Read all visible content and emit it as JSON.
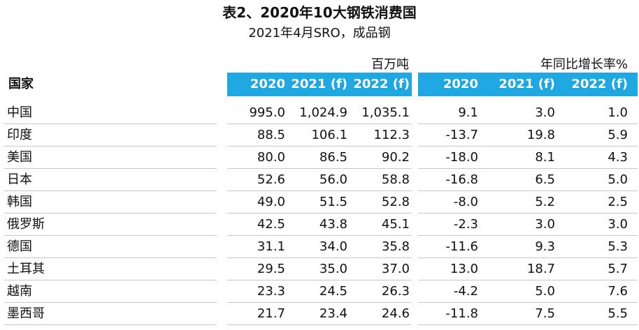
{
  "title": "表2、2020年10大钢铁消费国",
  "subtitle": "2021年4月SRO，成品钢",
  "units": {
    "left": "百万吨",
    "right": "年同比增长率%"
  },
  "header": {
    "country": "国家",
    "columns": [
      "2020",
      "2021 (f)",
      "2022 (f)",
      "2020",
      "2021 (f)",
      "2022 (f)"
    ]
  },
  "rows": [
    {
      "country": "中国",
      "values": [
        "995.0",
        "1,024.9",
        "1,035.1",
        "9.1",
        "3.0",
        "1.0"
      ]
    },
    {
      "country": "印度",
      "values": [
        "88.5",
        "106.1",
        "112.3",
        "-13.7",
        "19.8",
        "5.9"
      ]
    },
    {
      "country": "美国",
      "values": [
        "80.0",
        "86.5",
        "90.2",
        "-18.0",
        "8.1",
        "4.3"
      ]
    },
    {
      "country": "日本",
      "values": [
        "52.6",
        "56.0",
        "58.8",
        "-16.8",
        "6.5",
        "5.0"
      ]
    },
    {
      "country": "韩国",
      "values": [
        "49.0",
        "51.5",
        "52.8",
        "-8.0",
        "5.2",
        "2.5"
      ]
    },
    {
      "country": "俄罗斯",
      "values": [
        "42.5",
        "43.8",
        "45.1",
        "-2.3",
        "3.0",
        "3.0"
      ]
    },
    {
      "country": "德国",
      "values": [
        "31.1",
        "34.0",
        "35.8",
        "-11.6",
        "9.3",
        "5.3"
      ]
    },
    {
      "country": "土耳其",
      "values": [
        "29.5",
        "35.0",
        "37.0",
        "13.0",
        "18.7",
        "5.7"
      ]
    },
    {
      "country": "越南",
      "values": [
        "23.3",
        "24.5",
        "26.3",
        "-4.2",
        "5.0",
        "7.6"
      ]
    },
    {
      "country": "墨西哥",
      "values": [
        "21.7",
        "23.4",
        "24.6",
        "-11.8",
        "7.5",
        "5.5"
      ]
    }
  ]
}
